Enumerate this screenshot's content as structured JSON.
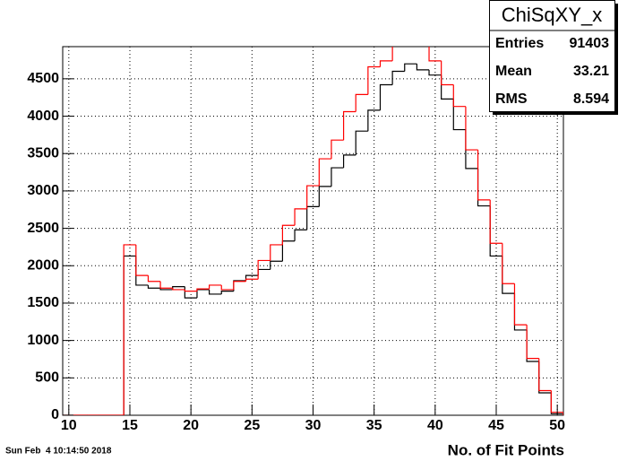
{
  "chart_data": {
    "type": "histogram",
    "bins": [
      9.5,
      10.5,
      11.5,
      12.5,
      13.5,
      14.5,
      15.5,
      16.5,
      17.5,
      18.5,
      19.5,
      20.5,
      21.5,
      22.5,
      23.5,
      24.5,
      25.5,
      26.5,
      27.5,
      28.5,
      29.5,
      30.5,
      31.5,
      32.5,
      33.5,
      34.5,
      35.5,
      36.5,
      37.5,
      38.5,
      39.5,
      40.5,
      41.5,
      42.5,
      43.5,
      44.5,
      45.5,
      46.5,
      47.5,
      48.5,
      49.5,
      50.5
    ],
    "series": [
      {
        "color": "#000000",
        "values": [
          0,
          0,
          0,
          0,
          0,
          2130,
          1740,
          1700,
          1680,
          1720,
          1570,
          1680,
          1620,
          1660,
          1800,
          1870,
          1950,
          2060,
          2330,
          2480,
          2790,
          3060,
          3310,
          3480,
          3800,
          4080,
          4420,
          4600,
          4700,
          4620,
          4550,
          4230,
          3820,
          3300,
          2800,
          2130,
          1630,
          1140,
          720,
          300,
          20
        ]
      },
      {
        "color": "#ff0000",
        "values": [
          0,
          0,
          0,
          0,
          0,
          2280,
          1870,
          1790,
          1700,
          1680,
          1660,
          1690,
          1740,
          1680,
          1790,
          1820,
          2070,
          2280,
          2540,
          2760,
          3070,
          3430,
          3680,
          4060,
          4290,
          4660,
          4740,
          5000,
          5100,
          5000,
          4740,
          4420,
          4130,
          3550,
          2880,
          2300,
          1760,
          1210,
          760,
          330,
          40
        ]
      }
    ],
    "x_label": "No. of Fit Points",
    "xlim": [
      9.5,
      50.5
    ],
    "xticks": [
      10,
      15,
      20,
      25,
      30,
      35,
      40,
      45,
      50
    ],
    "ylim": [
      0,
      4930
    ],
    "yticks": [
      0,
      500,
      1000,
      1500,
      2000,
      2500,
      3000,
      3500,
      4000,
      4500
    ],
    "grid": true,
    "stats": {
      "title": "ChiSqXY_x",
      "rows": [
        [
          "Entries",
          91403
        ],
        [
          "Mean",
          33.21
        ],
        [
          "RMS",
          8.594
        ]
      ]
    },
    "timestamp": "Sun Feb  4 10:14:50 2018"
  }
}
